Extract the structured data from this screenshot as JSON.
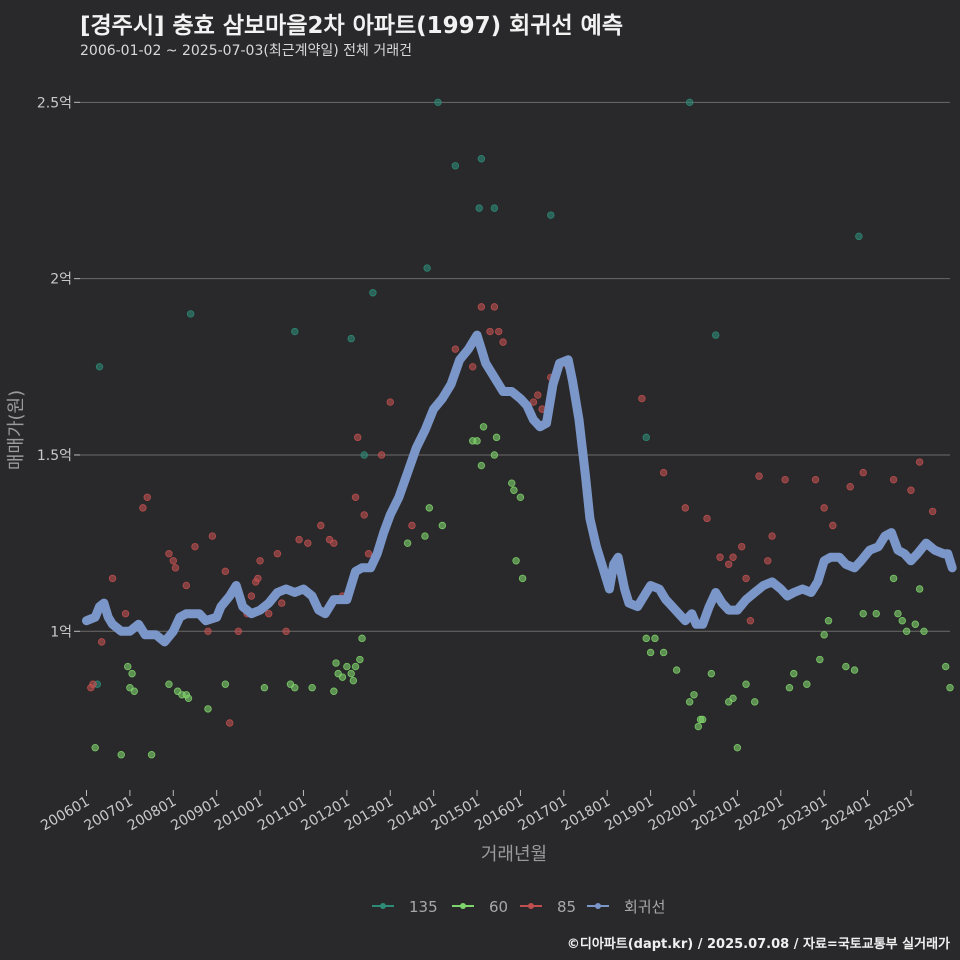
{
  "title": "[경주시] 충효 삼보마을2차 아파트(1997) 회귀선 예측",
  "subtitle": "2006-01-02 ~ 2025-07-03(최근계약일) 전체 거래건",
  "footer": "©디아파트(dapt.kr) / 2025.07.08 / 자료=국토교통부 실거래가",
  "colors": {
    "135": "#2e8b78",
    "60": "#7fd46b",
    "85": "#c05050",
    "regression": "#7b96c8",
    "grid": "#6a6a6a"
  },
  "chart_data": {
    "type": "scatter",
    "xlabel": "거래년월",
    "ylabel": "매매가(원)",
    "x_ticks": [
      "200601",
      "200701",
      "200801",
      "200901",
      "201001",
      "201101",
      "201201",
      "201301",
      "201401",
      "201501",
      "201601",
      "201701",
      "201801",
      "201901",
      "202001",
      "202101",
      "202201",
      "202301",
      "202401",
      "202501"
    ],
    "y_ticks": [
      {
        "value": 1.0,
        "label": "1억"
      },
      {
        "value": 1.5,
        "label": "1.5억"
      },
      {
        "value": 2.0,
        "label": "2억"
      },
      {
        "value": 2.5,
        "label": "2.5억"
      }
    ],
    "xlim": [
      2005.85,
      2025.9
    ],
    "ylim": [
      0.55,
      2.62
    ],
    "y_unit": "억",
    "grid": true,
    "legend_position": "bottom",
    "legend": [
      "135",
      "60",
      "85",
      "회귀선"
    ],
    "series": [
      {
        "name": "135",
        "points": [
          [
            2006.3,
            1.75
          ],
          [
            2006.25,
            0.85
          ],
          [
            2008.4,
            1.9
          ],
          [
            2010.8,
            1.85
          ],
          [
            2012.1,
            1.83
          ],
          [
            2012.6,
            1.96
          ],
          [
            2013.85,
            2.03
          ],
          [
            2014.1,
            2.5
          ],
          [
            2014.5,
            2.32
          ],
          [
            2015.1,
            2.34
          ],
          [
            2015.05,
            2.2
          ],
          [
            2015.4,
            2.2
          ],
          [
            2016.7,
            2.18
          ],
          [
            2018.9,
            1.55
          ],
          [
            2019.9,
            2.5
          ],
          [
            2020.5,
            1.84
          ],
          [
            2023.8,
            2.12
          ],
          [
            2012.4,
            1.5
          ]
        ]
      },
      {
        "name": "60",
        "points": [
          [
            2006.2,
            0.67
          ],
          [
            2006.95,
            0.9
          ],
          [
            2007.05,
            0.88
          ],
          [
            2007.0,
            0.84
          ],
          [
            2007.1,
            0.83
          ],
          [
            2006.8,
            0.65
          ],
          [
            2007.5,
            0.65
          ],
          [
            2007.9,
            0.85
          ],
          [
            2008.1,
            0.83
          ],
          [
            2008.2,
            0.82
          ],
          [
            2008.3,
            0.82
          ],
          [
            2008.35,
            0.81
          ],
          [
            2008.8,
            0.78
          ],
          [
            2009.2,
            0.85
          ],
          [
            2010.1,
            0.84
          ],
          [
            2010.7,
            0.85
          ],
          [
            2010.8,
            0.84
          ],
          [
            2011.2,
            0.84
          ],
          [
            2011.7,
            0.83
          ],
          [
            2011.8,
            0.88
          ],
          [
            2011.9,
            0.87
          ],
          [
            2012.0,
            0.9
          ],
          [
            2012.1,
            0.88
          ],
          [
            2012.15,
            0.86
          ],
          [
            2012.2,
            0.9
          ],
          [
            2012.3,
            0.92
          ],
          [
            2012.35,
            0.98
          ],
          [
            2011.75,
            0.91
          ],
          [
            2013.4,
            1.25
          ],
          [
            2013.8,
            1.27
          ],
          [
            2013.9,
            1.35
          ],
          [
            2014.2,
            1.3
          ],
          [
            2014.9,
            1.54
          ],
          [
            2015.0,
            1.54
          ],
          [
            2015.1,
            1.47
          ],
          [
            2015.15,
            1.58
          ],
          [
            2015.4,
            1.5
          ],
          [
            2015.45,
            1.55
          ],
          [
            2015.8,
            1.42
          ],
          [
            2015.85,
            1.4
          ],
          [
            2015.9,
            1.2
          ],
          [
            2016.0,
            1.38
          ],
          [
            2016.05,
            1.15
          ],
          [
            2018.9,
            0.98
          ],
          [
            2019.1,
            0.98
          ],
          [
            2019.0,
            0.94
          ],
          [
            2019.3,
            0.94
          ],
          [
            2019.6,
            0.89
          ],
          [
            2019.9,
            0.8
          ],
          [
            2020.0,
            0.82
          ],
          [
            2020.1,
            0.73
          ],
          [
            2020.15,
            0.75
          ],
          [
            2020.2,
            0.75
          ],
          [
            2020.4,
            0.88
          ],
          [
            2020.8,
            0.8
          ],
          [
            2020.9,
            0.81
          ],
          [
            2021.0,
            0.67
          ],
          [
            2021.2,
            0.85
          ],
          [
            2021.4,
            0.8
          ],
          [
            2022.2,
            0.84
          ],
          [
            2022.3,
            0.88
          ],
          [
            2022.6,
            0.85
          ],
          [
            2022.9,
            0.92
          ],
          [
            2023.0,
            0.99
          ],
          [
            2023.1,
            1.03
          ],
          [
            2023.5,
            0.9
          ],
          [
            2023.7,
            0.89
          ],
          [
            2023.9,
            1.05
          ],
          [
            2024.2,
            1.05
          ],
          [
            2024.6,
            1.15
          ],
          [
            2024.7,
            1.05
          ],
          [
            2024.8,
            1.03
          ],
          [
            2024.9,
            1.0
          ],
          [
            2025.1,
            1.02
          ],
          [
            2025.2,
            1.12
          ],
          [
            2025.3,
            1.0
          ],
          [
            2025.8,
            0.9
          ],
          [
            2025.9,
            0.84
          ]
        ]
      },
      {
        "name": "85",
        "points": [
          [
            2006.1,
            0.84
          ],
          [
            2006.15,
            0.85
          ],
          [
            2006.35,
            0.97
          ],
          [
            2006.6,
            1.15
          ],
          [
            2006.9,
            1.05
          ],
          [
            2007.3,
            1.35
          ],
          [
            2007.4,
            1.38
          ],
          [
            2007.9,
            1.22
          ],
          [
            2008.0,
            1.2
          ],
          [
            2008.05,
            1.18
          ],
          [
            2008.3,
            1.13
          ],
          [
            2008.5,
            1.24
          ],
          [
            2008.8,
            1.0
          ],
          [
            2008.9,
            1.27
          ],
          [
            2009.2,
            1.17
          ],
          [
            2009.3,
            0.74
          ],
          [
            2009.5,
            1.0
          ],
          [
            2009.7,
            1.05
          ],
          [
            2009.8,
            1.1
          ],
          [
            2009.9,
            1.14
          ],
          [
            2009.95,
            1.15
          ],
          [
            2010.0,
            1.2
          ],
          [
            2010.2,
            1.05
          ],
          [
            2010.4,
            1.22
          ],
          [
            2010.5,
            1.08
          ],
          [
            2010.6,
            1.0
          ],
          [
            2010.9,
            1.26
          ],
          [
            2011.1,
            1.25
          ],
          [
            2011.4,
            1.3
          ],
          [
            2011.6,
            1.26
          ],
          [
            2011.7,
            1.25
          ],
          [
            2011.9,
            1.1
          ],
          [
            2012.2,
            1.38
          ],
          [
            2012.25,
            1.55
          ],
          [
            2012.4,
            1.33
          ],
          [
            2012.5,
            1.22
          ],
          [
            2012.8,
            1.5
          ],
          [
            2013.0,
            1.65
          ],
          [
            2013.5,
            1.3
          ],
          [
            2014.5,
            1.8
          ],
          [
            2014.6,
            1.77
          ],
          [
            2014.9,
            1.75
          ],
          [
            2015.1,
            1.92
          ],
          [
            2015.3,
            1.85
          ],
          [
            2015.4,
            1.92
          ],
          [
            2015.5,
            1.85
          ],
          [
            2015.6,
            1.82
          ],
          [
            2016.3,
            1.65
          ],
          [
            2016.4,
            1.67
          ],
          [
            2016.5,
            1.63
          ],
          [
            2016.7,
            1.72
          ],
          [
            2017.1,
            1.75
          ],
          [
            2018.8,
            1.66
          ],
          [
            2019.3,
            1.45
          ],
          [
            2019.8,
            1.35
          ],
          [
            2020.3,
            1.32
          ],
          [
            2020.6,
            1.21
          ],
          [
            2020.8,
            1.19
          ],
          [
            2020.9,
            1.21
          ],
          [
            2021.1,
            1.24
          ],
          [
            2021.2,
            1.15
          ],
          [
            2021.3,
            1.03
          ],
          [
            2021.5,
            1.44
          ],
          [
            2021.7,
            1.2
          ],
          [
            2021.8,
            1.27
          ],
          [
            2022.1,
            1.43
          ],
          [
            2022.8,
            1.43
          ],
          [
            2023.0,
            1.35
          ],
          [
            2023.2,
            1.3
          ],
          [
            2023.6,
            1.41
          ],
          [
            2023.9,
            1.45
          ],
          [
            2024.6,
            1.43
          ],
          [
            2025.0,
            1.4
          ],
          [
            2025.2,
            1.48
          ],
          [
            2025.5,
            1.34
          ]
        ]
      }
    ],
    "regression": [
      [
        2006.0,
        1.03
      ],
      [
        2006.2,
        1.04
      ],
      [
        2006.3,
        1.07
      ],
      [
        2006.4,
        1.08
      ],
      [
        2006.5,
        1.04
      ],
      [
        2006.6,
        1.02
      ],
      [
        2006.8,
        1.0
      ],
      [
        2007.0,
        1.0
      ],
      [
        2007.2,
        1.02
      ],
      [
        2007.35,
        0.99
      ],
      [
        2007.6,
        0.99
      ],
      [
        2007.8,
        0.97
      ],
      [
        2008.0,
        1.0
      ],
      [
        2008.15,
        1.04
      ],
      [
        2008.3,
        1.05
      ],
      [
        2008.6,
        1.05
      ],
      [
        2008.75,
        1.03
      ],
      [
        2009.0,
        1.04
      ],
      [
        2009.1,
        1.07
      ],
      [
        2009.3,
        1.1
      ],
      [
        2009.45,
        1.13
      ],
      [
        2009.6,
        1.07
      ],
      [
        2009.8,
        1.05
      ],
      [
        2010.0,
        1.06
      ],
      [
        2010.2,
        1.08
      ],
      [
        2010.4,
        1.11
      ],
      [
        2010.6,
        1.12
      ],
      [
        2010.8,
        1.11
      ],
      [
        2011.0,
        1.12
      ],
      [
        2011.2,
        1.1
      ],
      [
        2011.35,
        1.06
      ],
      [
        2011.5,
        1.05
      ],
      [
        2011.7,
        1.09
      ],
      [
        2012.0,
        1.09
      ],
      [
        2012.2,
        1.17
      ],
      [
        2012.35,
        1.18
      ],
      [
        2012.55,
        1.18
      ],
      [
        2012.7,
        1.22
      ],
      [
        2012.85,
        1.28
      ],
      [
        2013.0,
        1.33
      ],
      [
        2013.2,
        1.38
      ],
      [
        2013.4,
        1.45
      ],
      [
        2013.6,
        1.52
      ],
      [
        2013.8,
        1.57
      ],
      [
        2014.0,
        1.63
      ],
      [
        2014.2,
        1.66
      ],
      [
        2014.4,
        1.7
      ],
      [
        2014.6,
        1.77
      ],
      [
        2014.8,
        1.8
      ],
      [
        2015.0,
        1.84
      ],
      [
        2015.1,
        1.8
      ],
      [
        2015.2,
        1.76
      ],
      [
        2015.4,
        1.72
      ],
      [
        2015.6,
        1.68
      ],
      [
        2015.8,
        1.68
      ],
      [
        2016.0,
        1.66
      ],
      [
        2016.15,
        1.64
      ],
      [
        2016.3,
        1.6
      ],
      [
        2016.45,
        1.58
      ],
      [
        2016.6,
        1.59
      ],
      [
        2016.75,
        1.7
      ],
      [
        2016.9,
        1.76
      ],
      [
        2017.1,
        1.77
      ],
      [
        2017.2,
        1.71
      ],
      [
        2017.35,
        1.6
      ],
      [
        2017.5,
        1.44
      ],
      [
        2017.6,
        1.32
      ],
      [
        2017.75,
        1.24
      ],
      [
        2017.9,
        1.18
      ],
      [
        2018.05,
        1.12
      ],
      [
        2018.15,
        1.19
      ],
      [
        2018.25,
        1.21
      ],
      [
        2018.4,
        1.12
      ],
      [
        2018.5,
        1.08
      ],
      [
        2018.7,
        1.07
      ],
      [
        2018.85,
        1.1
      ],
      [
        2019.0,
        1.13
      ],
      [
        2019.2,
        1.12
      ],
      [
        2019.35,
        1.09
      ],
      [
        2019.5,
        1.07
      ],
      [
        2019.65,
        1.05
      ],
      [
        2019.8,
        1.03
      ],
      [
        2019.95,
        1.05
      ],
      [
        2020.05,
        1.02
      ],
      [
        2020.2,
        1.02
      ],
      [
        2020.35,
        1.07
      ],
      [
        2020.5,
        1.11
      ],
      [
        2020.65,
        1.08
      ],
      [
        2020.8,
        1.06
      ],
      [
        2021.0,
        1.06
      ],
      [
        2021.2,
        1.09
      ],
      [
        2021.4,
        1.11
      ],
      [
        2021.6,
        1.13
      ],
      [
        2021.8,
        1.14
      ],
      [
        2022.0,
        1.12
      ],
      [
        2022.15,
        1.1
      ],
      [
        2022.3,
        1.11
      ],
      [
        2022.5,
        1.12
      ],
      [
        2022.7,
        1.11
      ],
      [
        2022.85,
        1.14
      ],
      [
        2023.0,
        1.2
      ],
      [
        2023.15,
        1.21
      ],
      [
        2023.35,
        1.21
      ],
      [
        2023.5,
        1.19
      ],
      [
        2023.7,
        1.18
      ],
      [
        2023.85,
        1.2
      ],
      [
        2024.05,
        1.23
      ],
      [
        2024.25,
        1.24
      ],
      [
        2024.4,
        1.27
      ],
      [
        2024.55,
        1.28
      ],
      [
        2024.7,
        1.23
      ],
      [
        2024.85,
        1.22
      ],
      [
        2025.0,
        1.2
      ],
      [
        2025.15,
        1.22
      ],
      [
        2025.35,
        1.25
      ],
      [
        2025.55,
        1.23
      ],
      [
        2025.75,
        1.22
      ],
      [
        2025.85,
        1.22
      ],
      [
        2025.95,
        1.18
      ]
    ]
  }
}
